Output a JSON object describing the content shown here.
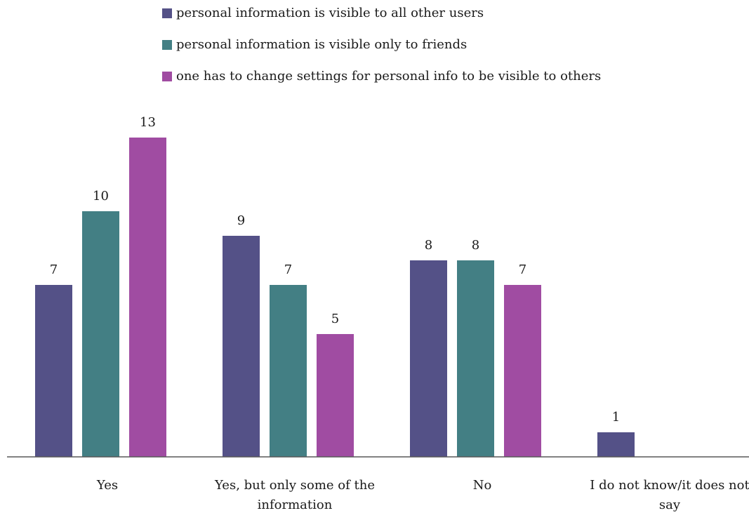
{
  "chart_data": {
    "type": "bar",
    "categories": [
      "Yes",
      "Yes, but only some of the information",
      "No",
      "I do not know/it does not say"
    ],
    "category_lines": [
      [
        "Yes"
      ],
      [
        "Yes, but only some of the",
        "information"
      ],
      [
        "No"
      ],
      [
        "I do not know/it does not",
        "say"
      ]
    ],
    "series": [
      {
        "name": "personal information is visible to all other users",
        "color": "#545187",
        "values": [
          7,
          9,
          8,
          1
        ]
      },
      {
        "name": "personal information is visible only to friends",
        "color": "#437f84",
        "values": [
          10,
          7,
          8,
          null
        ]
      },
      {
        "name": "one has to change settings for personal info to be visible to others",
        "color": "#a04ca2",
        "values": [
          13,
          5,
          7,
          null
        ]
      }
    ],
    "ylim": [
      0,
      13
    ],
    "grid": false,
    "legend_position": "top",
    "data_labels": true
  }
}
